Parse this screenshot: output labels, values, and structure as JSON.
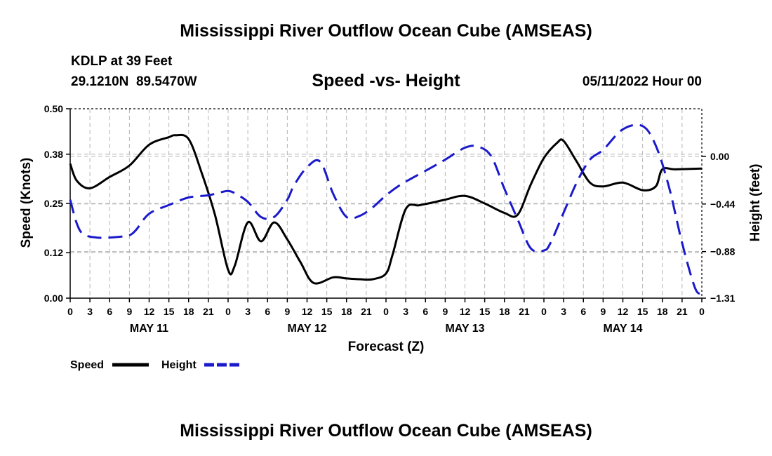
{
  "header": {
    "title": "Mississippi River Outflow Ocean Cube (AMSEAS)",
    "station": "KDLP at 39 Feet",
    "coords": "29.1210N  89.5470W",
    "subtitle": "Speed -vs- Height",
    "datetime": "05/11/2022 Hour 00"
  },
  "footer": {
    "title": "Mississippi River Outflow Ocean Cube (AMSEAS)"
  },
  "chart_data": {
    "type": "line",
    "title": "Speed -vs- Height",
    "xlabel": "Forecast (Z)",
    "ylabel": "Speed (Knots)",
    "y2label": "Height (feet)",
    "x_range_hours": [
      0,
      96
    ],
    "x_tick_labels": [
      "0",
      "3",
      "6",
      "9",
      "12",
      "15",
      "18",
      "21",
      "0",
      "3",
      "6",
      "9",
      "12",
      "15",
      "18",
      "21",
      "0",
      "3",
      "6",
      "9",
      "12",
      "15",
      "18",
      "21",
      "0",
      "3",
      "6",
      "9",
      "12",
      "15",
      "18",
      "21",
      "0"
    ],
    "day_labels": [
      {
        "label": "MAY 11",
        "hour": 12
      },
      {
        "label": "MAY 12",
        "hour": 36
      },
      {
        "label": "MAY 13",
        "hour": 60
      },
      {
        "label": "MAY 14",
        "hour": 84
      }
    ],
    "y_left": {
      "min": 0,
      "max": 0.5,
      "ticks": [
        0.0,
        0.12,
        0.25,
        0.38,
        0.5
      ],
      "tick_labels": [
        "0.00",
        "0.12",
        "0.25",
        "0.38",
        "0.50"
      ]
    },
    "y_right": {
      "min": -1.31,
      "max": 0.44,
      "ticks": [
        -1.31,
        -0.88,
        -0.44,
        0.0
      ],
      "tick_labels": [
        "−1.31",
        "−0.88",
        "−0.44",
        "0.00"
      ]
    },
    "series": [
      {
        "name": "Speed",
        "axis": "left",
        "color": "#000000",
        "style": "solid",
        "x": [
          0,
          1,
          3,
          6,
          9,
          12,
          15,
          16,
          18,
          20,
          22,
          24,
          25,
          27,
          29,
          31,
          33,
          35,
          37,
          40,
          42,
          44,
          46,
          48,
          49,
          51,
          53,
          55,
          57,
          60,
          63,
          66,
          68,
          70,
          72,
          74,
          75,
          77,
          79,
          81,
          84,
          87,
          89,
          90,
          92,
          96
        ],
        "values": [
          0.355,
          0.31,
          0.29,
          0.32,
          0.35,
          0.405,
          0.425,
          0.43,
          0.42,
          0.33,
          0.22,
          0.075,
          0.085,
          0.2,
          0.15,
          0.2,
          0.155,
          0.095,
          0.04,
          0.055,
          0.052,
          0.05,
          0.05,
          0.065,
          0.115,
          0.235,
          0.245,
          0.252,
          0.26,
          0.27,
          0.25,
          0.225,
          0.22,
          0.3,
          0.37,
          0.41,
          0.415,
          0.36,
          0.305,
          0.295,
          0.305,
          0.285,
          0.295,
          0.34,
          0.34,
          0.342
        ]
      },
      {
        "name": "Height",
        "axis": "right",
        "color": "#1a1acc",
        "style": "dashed",
        "x": [
          0,
          1,
          2,
          4,
          6,
          8,
          9,
          10,
          12,
          15,
          18,
          21,
          23,
          24,
          25,
          27,
          29,
          31,
          33,
          34,
          36,
          38,
          40,
          42,
          44,
          46,
          48,
          50,
          52,
          55,
          57,
          60,
          62,
          64,
          66,
          68,
          70,
          72,
          73,
          75,
          77,
          79,
          81,
          84,
          87,
          89,
          91,
          93,
          95,
          96
        ],
        "values": [
          -0.4,
          -0.62,
          -0.72,
          -0.75,
          -0.75,
          -0.74,
          -0.73,
          -0.68,
          -0.53,
          -0.45,
          -0.38,
          -0.36,
          -0.33,
          -0.32,
          -0.34,
          -0.42,
          -0.56,
          -0.56,
          -0.4,
          -0.27,
          -0.1,
          -0.05,
          -0.35,
          -0.56,
          -0.55,
          -0.47,
          -0.36,
          -0.27,
          -0.2,
          -0.1,
          -0.03,
          0.08,
          0.09,
          0.0,
          -0.3,
          -0.58,
          -0.85,
          -0.87,
          -0.8,
          -0.52,
          -0.24,
          -0.03,
          0.06,
          0.25,
          0.28,
          0.1,
          -0.28,
          -0.8,
          -1.22,
          -1.26
        ]
      }
    ],
    "legend": [
      {
        "label": "Speed",
        "color": "#000000",
        "style": "solid"
      },
      {
        "label": "Height",
        "color": "#1a1acc",
        "style": "dashed"
      }
    ]
  }
}
